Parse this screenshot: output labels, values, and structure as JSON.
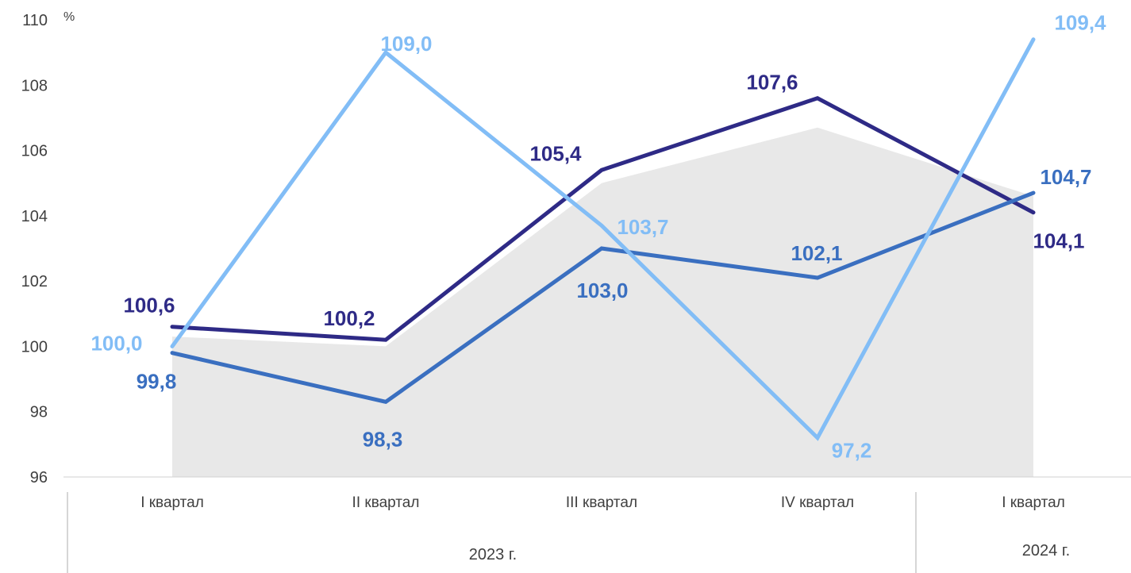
{
  "chart_data": {
    "type": "line",
    "y_unit": "%",
    "ylim": [
      96,
      110
    ],
    "y_ticks": [
      96,
      98,
      100,
      102,
      104,
      106,
      108,
      110
    ],
    "categories": [
      "I квартал",
      "II квартал",
      "III квартал",
      "IV квартал",
      "I квартал"
    ],
    "year_groups": [
      {
        "label": "2023 г.",
        "span": 4
      },
      {
        "label": "2024 г.",
        "span": 1
      }
    ],
    "area": {
      "values": [
        100.3,
        100.0,
        105.0,
        106.7,
        104.6
      ],
      "color": "#e8e8e8"
    },
    "series": [
      {
        "values": [
          100.6,
          100.2,
          105.4,
          107.6,
          104.1
        ],
        "labels": [
          "100,6",
          "100,2",
          "105,4",
          "107,6",
          "104,1"
        ],
        "color": "#2e2a86"
      },
      {
        "values": [
          99.8,
          98.3,
          103.0,
          102.1,
          104.7
        ],
        "labels": [
          "99,8",
          "98,3",
          "103,0",
          "102,1",
          "104,7"
        ],
        "color": "#3a6fc0"
      },
      {
        "values": [
          100.0,
          109.0,
          103.7,
          97.2,
          109.4
        ],
        "labels": [
          "100,0",
          "109,0",
          "103,7",
          "97,2",
          "109,4"
        ],
        "color": "#82bdf6"
      }
    ],
    "grid": false,
    "legend": "none"
  }
}
